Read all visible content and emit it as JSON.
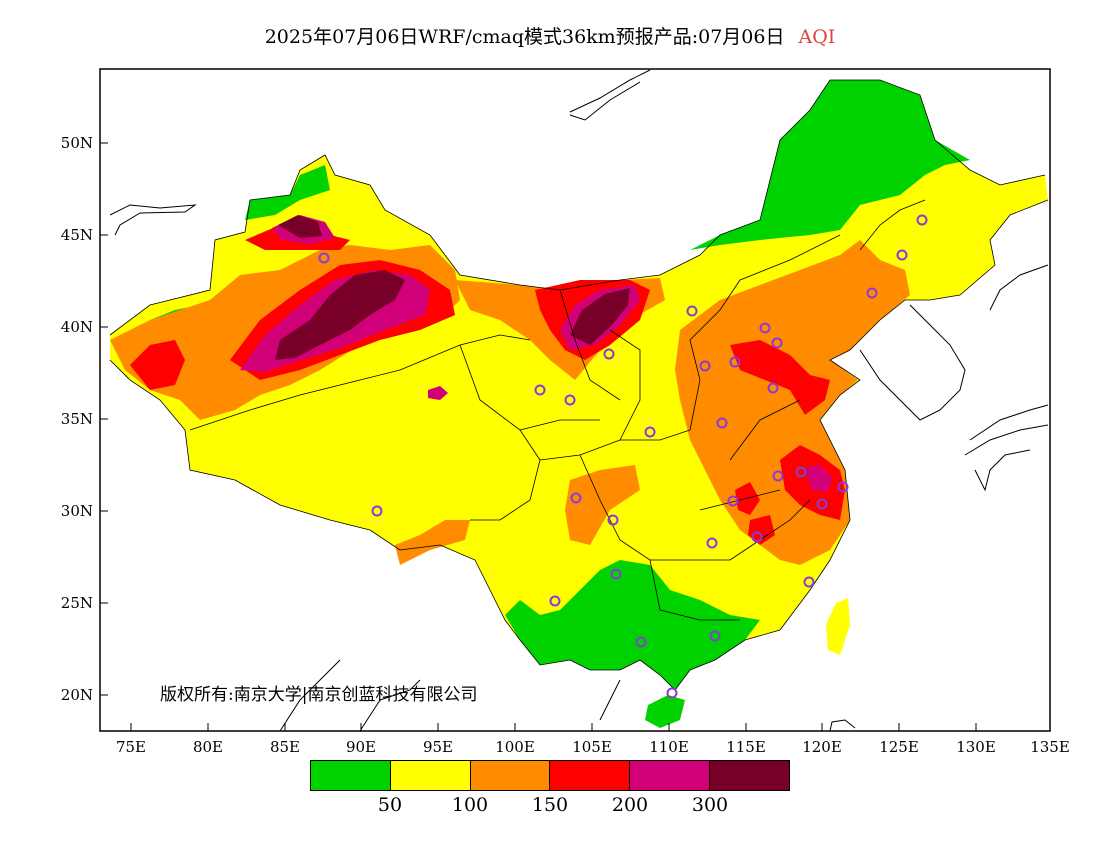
{
  "title": {
    "main": "2025年07月06日WRF/cmaq模式36km预报产品:07月06日",
    "variable": "AQI"
  },
  "axes": {
    "lat_labels": [
      "50N",
      "45N",
      "40N",
      "35N",
      "30N",
      "25N",
      "20N"
    ],
    "lon_labels": [
      "75E",
      "80E",
      "85E",
      "90E",
      "95E",
      "100E",
      "105E",
      "110E",
      "115E",
      "120E",
      "125E",
      "130E",
      "135E"
    ]
  },
  "copyright": "版权所有:南京大学|南京创蓝科技有限公司",
  "legend": {
    "colors": [
      "#00d200",
      "#ffff00",
      "#ff8c00",
      "#ff0000",
      "#d20078",
      "#780028"
    ],
    "labels": [
      "50",
      "100",
      "150",
      "200",
      "300"
    ]
  },
  "map": {
    "region_colors": {
      "green": "#00d200",
      "yellow": "#ffff00",
      "orange": "#ff8c00",
      "red": "#ff0000",
      "purple": "#d20078",
      "maroon": "#780028"
    },
    "station_marker_color": "#8a3bd6"
  }
}
